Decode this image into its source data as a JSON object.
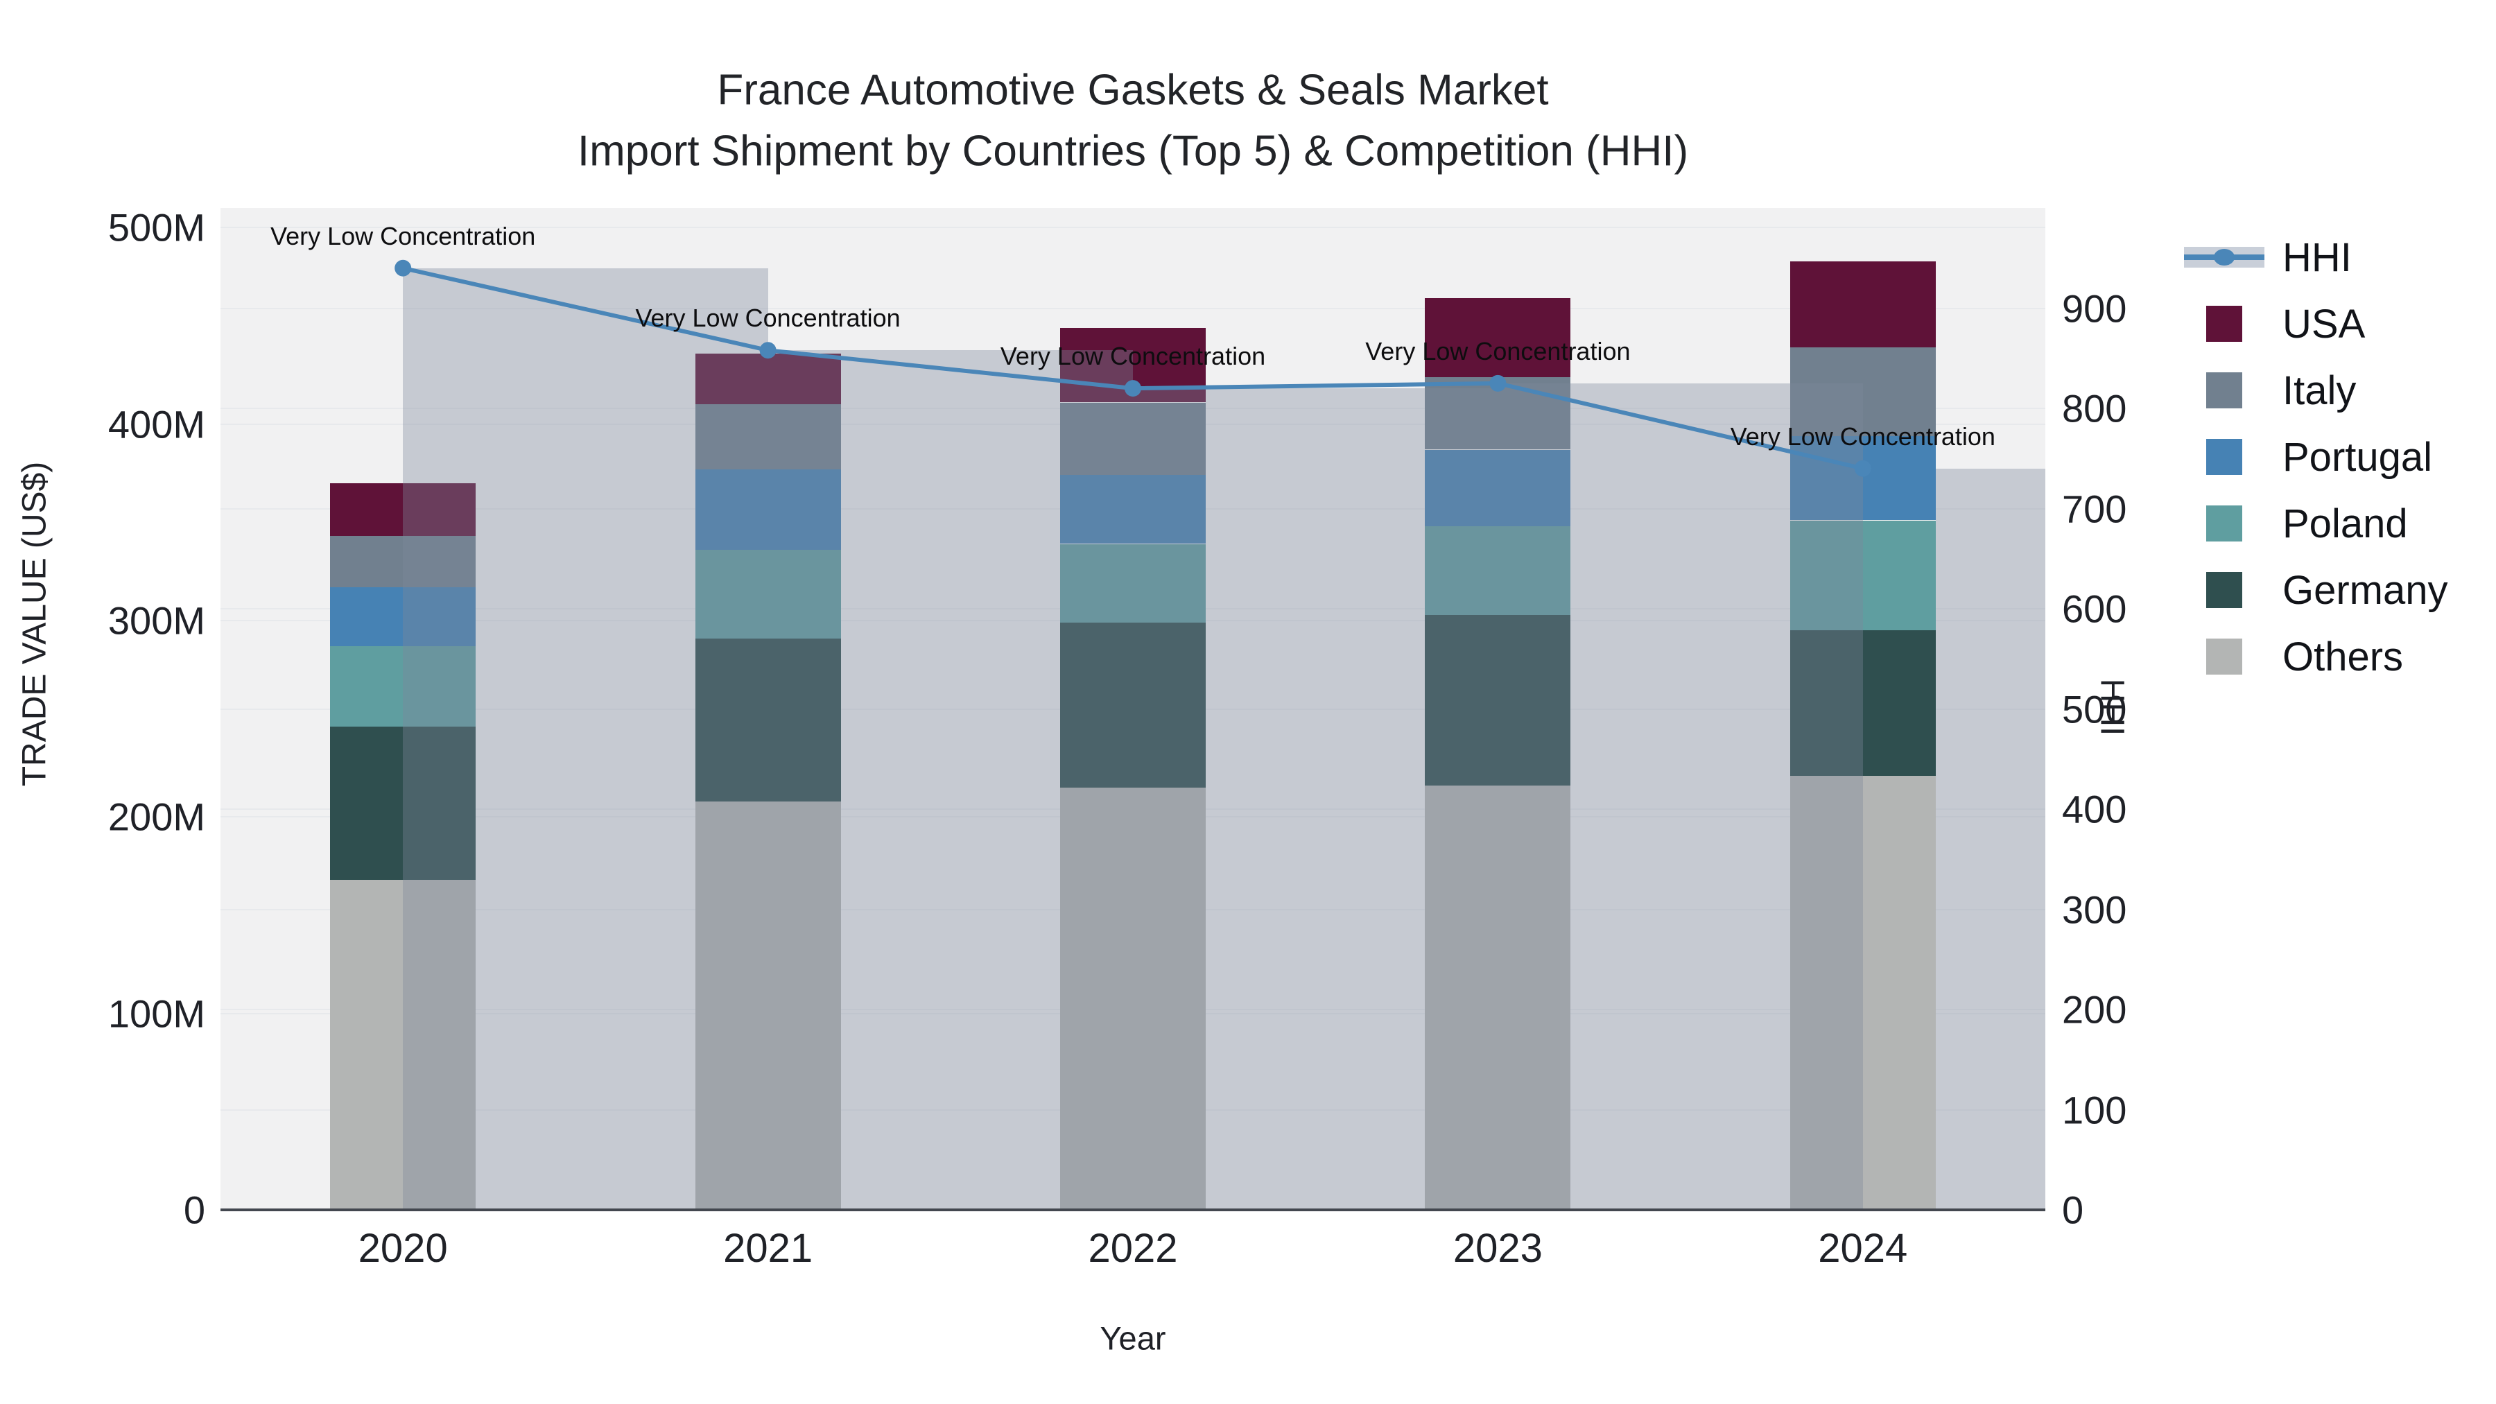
{
  "title": {
    "line1": "France Automotive Gaskets & Seals Market",
    "line2": "Import Shipment by Countries (Top 5) & Competition (HHI)"
  },
  "axes": {
    "left": {
      "title": "TRADE VALUE (US$)",
      "tick_labels": [
        "0",
        "100M",
        "200M",
        "300M",
        "400M",
        "500M"
      ],
      "tick_values_musd": [
        0,
        100,
        200,
        300,
        400,
        500
      ],
      "range_musd": [
        0,
        510
      ]
    },
    "right": {
      "title": "HHI",
      "tick_labels": [
        "0",
        "100",
        "200",
        "300",
        "400",
        "500",
        "600",
        "700",
        "800",
        "900"
      ],
      "tick_values": [
        0,
        100,
        200,
        300,
        400,
        500,
        600,
        700,
        800,
        900
      ],
      "range": [
        0,
        1000
      ]
    },
    "x": {
      "title": "Year"
    }
  },
  "colors": {
    "plot_bg": "#f1f1f2",
    "gridline": "#e7e9ec",
    "axis_line": "#43474f",
    "hhi_line": "#4a86b8",
    "hhi_column_overlay": "rgba(125,135,155,0.37)"
  },
  "chart_data": {
    "type": "bar",
    "subtype": "stacked-bar-with-line",
    "categories": [
      "2020",
      "2021",
      "2022",
      "2023",
      "2024"
    ],
    "series": [
      {
        "name": "USA",
        "type": "bar",
        "color": "#5f1238",
        "values_musd": [
          27,
          26,
          38,
          40,
          44
        ]
      },
      {
        "name": "Italy",
        "type": "bar",
        "color": "#71808f",
        "values_musd": [
          26,
          33,
          37,
          37,
          45
        ]
      },
      {
        "name": "Portugal",
        "type": "bar",
        "color": "#4682b4",
        "values_musd": [
          30,
          41,
          35,
          39,
          43
        ]
      },
      {
        "name": "Poland",
        "type": "bar",
        "color": "#5f9ea0",
        "values_musd": [
          41,
          45,
          40,
          45,
          56
        ]
      },
      {
        "name": "Germany",
        "type": "bar",
        "color": "#2f4f4f",
        "values_musd": [
          78,
          83,
          84,
          87,
          74
        ]
      },
      {
        "name": "Others",
        "type": "bar",
        "color": "#b3b5b4",
        "values_musd": [
          168,
          208,
          215,
          216,
          221
        ]
      }
    ],
    "stack_order_bottom_to_top": [
      "Others",
      "Germany",
      "Poland",
      "Portugal",
      "Italy",
      "USA"
    ],
    "totals_musd": [
      370,
      436,
      449,
      464,
      483
    ],
    "line_series": {
      "name": "HHI",
      "axis": "right",
      "color": "#4a86b8",
      "values": [
        940,
        858,
        820,
        825,
        740
      ]
    },
    "annotations": [
      {
        "year": "2020",
        "text": "Very Low Concentration"
      },
      {
        "year": "2021",
        "text": "Very Low Concentration"
      },
      {
        "year": "2022",
        "text": "Very Low Concentration"
      },
      {
        "year": "2023",
        "text": "Very Low Concentration"
      },
      {
        "year": "2024",
        "text": "Very Low Concentration"
      }
    ],
    "legend": {
      "position": "right",
      "items": [
        "HHI",
        "USA",
        "Italy",
        "Portugal",
        "Poland",
        "Germany",
        "Others"
      ]
    },
    "xlabel": "Year",
    "ylabel_left": "TRADE VALUE (US$)",
    "ylabel_right": "HHI",
    "grid": true
  }
}
